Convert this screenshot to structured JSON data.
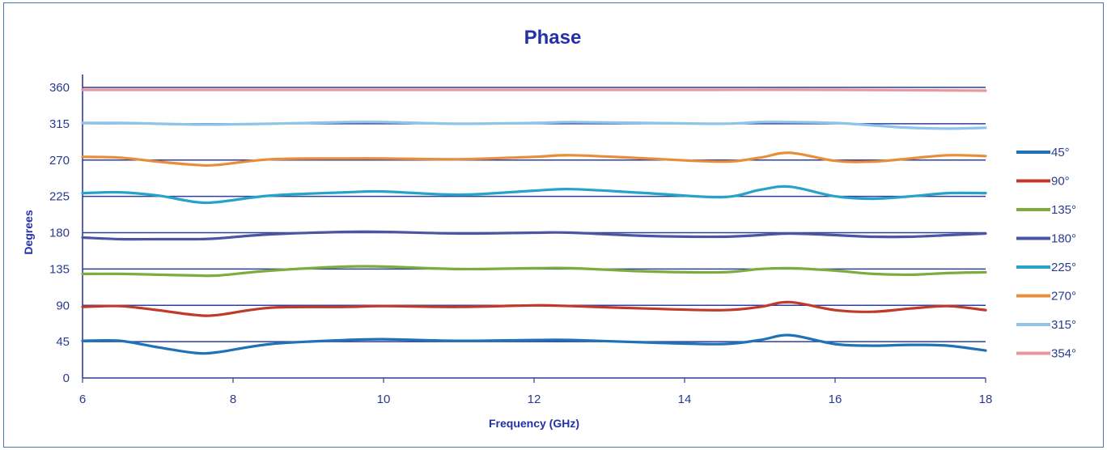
{
  "chart_data": {
    "type": "line",
    "title": "Phase",
    "xlabel": "Frequency (GHz)",
    "ylabel": "Degrees",
    "xlim": [
      6,
      18
    ],
    "ylim": [
      0,
      360
    ],
    "xticks": [
      6,
      8,
      10,
      12,
      14,
      16,
      18
    ],
    "yticks": [
      0,
      45,
      90,
      135,
      180,
      225,
      270,
      315,
      360
    ],
    "gridlines_y": [
      45,
      90,
      135,
      180,
      225,
      270,
      315,
      360
    ],
    "grid": "horizontal",
    "legend_position": "right",
    "series": [
      {
        "name": "45°",
        "color": "#1f72b8",
        "x": [
          6,
          6.5,
          7,
          7.5,
          7.8,
          8.5,
          9.5,
          10,
          11,
          12,
          12.5,
          13.5,
          14.5,
          15,
          15.4,
          16,
          16.5,
          17,
          17.5,
          18
        ],
        "y": [
          46,
          46,
          38,
          31,
          32,
          42,
          47,
          48,
          46,
          47,
          47,
          44,
          42,
          47,
          53,
          42,
          40,
          41,
          40,
          34
        ]
      },
      {
        "name": "90°",
        "color": "#c0392b",
        "x": [
          6,
          6.5,
          7,
          7.5,
          7.8,
          8.5,
          9.5,
          10,
          11,
          12,
          12.5,
          13.5,
          14.5,
          15,
          15.4,
          16,
          16.5,
          17,
          17.5,
          18
        ],
        "y": [
          88,
          89,
          84,
          78,
          78,
          87,
          88,
          89,
          88,
          90,
          89,
          86,
          84,
          88,
          94,
          84,
          82,
          86,
          89,
          84
        ]
      },
      {
        "name": "135°",
        "color": "#7cac3e",
        "x": [
          6,
          6.5,
          7,
          7.5,
          7.8,
          8.5,
          9.5,
          10,
          11,
          12,
          12.5,
          13.5,
          14.5,
          15,
          15.4,
          16,
          16.5,
          17,
          17.5,
          18
        ],
        "y": [
          129,
          129,
          128,
          127,
          127,
          133,
          138,
          138,
          135,
          136,
          136,
          132,
          131,
          135,
          136,
          133,
          129,
          128,
          130,
          131
        ]
      },
      {
        "name": "180°",
        "color": "#4b55a3",
        "x": [
          6,
          6.5,
          7,
          7.5,
          7.8,
          8.5,
          9.5,
          10,
          11,
          12,
          12.5,
          13.5,
          14.5,
          15,
          15.4,
          16,
          16.5,
          17,
          17.5,
          18
        ],
        "y": [
          174,
          172,
          172,
          172,
          173,
          178,
          181,
          181,
          179,
          180,
          180,
          176,
          175,
          177,
          179,
          177,
          175,
          175,
          177,
          179
        ]
      },
      {
        "name": "225°",
        "color": "#27a3c9",
        "x": [
          6,
          6.5,
          7,
          7.5,
          7.8,
          8.5,
          9.5,
          10,
          11,
          12,
          12.5,
          13.5,
          14.5,
          15,
          15.4,
          16,
          16.5,
          17,
          17.5,
          18
        ],
        "y": [
          229,
          230,
          226,
          218,
          218,
          226,
          230,
          231,
          227,
          232,
          234,
          229,
          224,
          233,
          237,
          225,
          222,
          225,
          229,
          229
        ]
      },
      {
        "name": "270°",
        "color": "#e88d3b",
        "x": [
          6,
          6.5,
          7,
          7.5,
          7.8,
          8.5,
          9.5,
          10,
          11,
          12,
          12.5,
          13.5,
          14.5,
          15,
          15.4,
          16,
          16.5,
          17,
          17.5,
          18
        ],
        "y": [
          274,
          273,
          268,
          264,
          264,
          271,
          272,
          272,
          271,
          274,
          276,
          272,
          268,
          273,
          279,
          269,
          268,
          272,
          276,
          275
        ]
      },
      {
        "name": "315°",
        "color": "#8ec4e8",
        "x": [
          6,
          6.5,
          7,
          7.5,
          7.8,
          8.5,
          9.5,
          10,
          11,
          12,
          12.5,
          13.5,
          14.5,
          15,
          15.4,
          16,
          16.5,
          17,
          17.5,
          18
        ],
        "y": [
          316,
          316,
          315,
          314,
          314,
          315,
          317,
          317,
          315,
          316,
          317,
          316,
          315,
          317,
          317,
          316,
          313,
          310,
          309,
          310
        ]
      },
      {
        "name": "354°",
        "color": "#e8979e",
        "x": [
          6,
          8,
          10,
          12,
          14,
          16,
          18
        ],
        "y": [
          357,
          357,
          357,
          357,
          357,
          357,
          356
        ]
      }
    ]
  }
}
